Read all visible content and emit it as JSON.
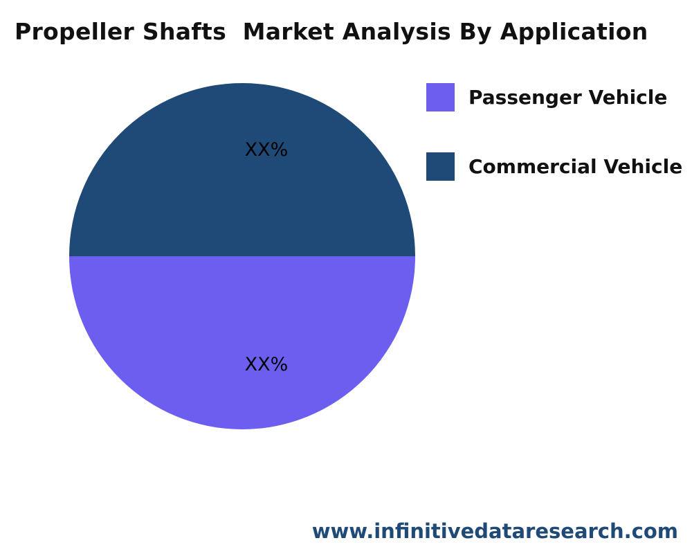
{
  "chart_data": {
    "type": "pie",
    "title": "Propeller Shafts  Market Analysis By Application",
    "legend_position": "right",
    "slices": [
      {
        "name": "Passenger Vehicle",
        "value": 50,
        "label": "XX%",
        "color": "#6c5ff0"
      },
      {
        "name": "Commercial Vehicle",
        "value": 50,
        "label": "XX%",
        "color": "#1f4a78"
      }
    ]
  },
  "footer": {
    "website": "www.infinitivedataresearch.com"
  }
}
